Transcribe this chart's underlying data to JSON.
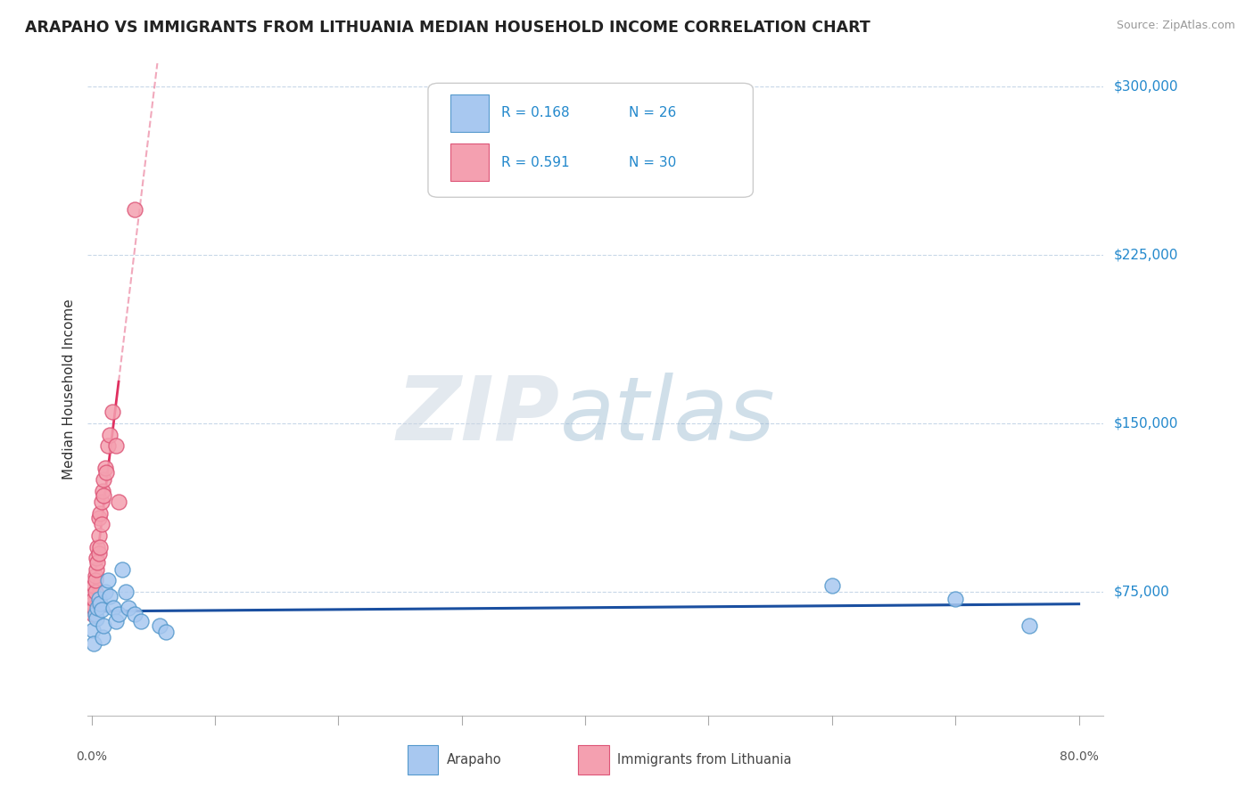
{
  "title": "ARAPAHO VS IMMIGRANTS FROM LITHUANIA MEDIAN HOUSEHOLD INCOME CORRELATION CHART",
  "source": "Source: ZipAtlas.com",
  "ylabel": "Median Household Income",
  "legend_r1": "R = 0.168",
  "legend_n1": "N = 26",
  "legend_r2": "R = 0.591",
  "legend_n2": "N = 30",
  "arapaho_color": "#a8c8f0",
  "arapaho_edge": "#5599cc",
  "lithuania_color": "#f4a0b0",
  "lithuania_edge": "#dd5577",
  "trendline_blue": "#1a4fa0",
  "trendline_pink": "#e03060",
  "trendline_pink_dashed": "#e87090",
  "watermark_zip": "ZIP",
  "watermark_atlas": "atlas",
  "xlim_min": -0.003,
  "xlim_max": 0.82,
  "ylim_min": 20000,
  "ylim_max": 310000,
  "ytick_vals": [
    75000,
    150000,
    225000,
    300000
  ],
  "ytick_labels": [
    "$75,000",
    "$150,000",
    "$225,000",
    "$300,000"
  ],
  "xtick_positions": [
    0.0,
    0.1,
    0.2,
    0.3,
    0.4,
    0.5,
    0.6,
    0.7,
    0.8
  ],
  "arapaho_x": [
    0.001,
    0.002,
    0.003,
    0.004,
    0.005,
    0.006,
    0.007,
    0.008,
    0.009,
    0.01,
    0.011,
    0.013,
    0.015,
    0.018,
    0.02,
    0.022,
    0.025,
    0.028,
    0.03,
    0.035,
    0.04,
    0.055,
    0.06,
    0.6,
    0.7,
    0.76
  ],
  "arapaho_y": [
    58000,
    52000,
    65000,
    63000,
    68000,
    72000,
    70000,
    67000,
    55000,
    60000,
    75000,
    80000,
    73000,
    68000,
    62000,
    65000,
    85000,
    75000,
    68000,
    65000,
    62000,
    60000,
    57000,
    78000,
    72000,
    60000
  ],
  "lithuania_x": [
    0.001,
    0.001,
    0.002,
    0.002,
    0.002,
    0.003,
    0.003,
    0.003,
    0.004,
    0.004,
    0.005,
    0.005,
    0.006,
    0.006,
    0.006,
    0.007,
    0.007,
    0.008,
    0.008,
    0.009,
    0.01,
    0.01,
    0.011,
    0.012,
    0.013,
    0.015,
    0.017,
    0.02,
    0.022,
    0.035
  ],
  "lithuania_y": [
    65000,
    70000,
    68000,
    72000,
    78000,
    75000,
    82000,
    80000,
    85000,
    90000,
    88000,
    95000,
    92000,
    100000,
    108000,
    95000,
    110000,
    105000,
    115000,
    120000,
    118000,
    125000,
    130000,
    128000,
    140000,
    145000,
    155000,
    140000,
    115000,
    245000
  ]
}
